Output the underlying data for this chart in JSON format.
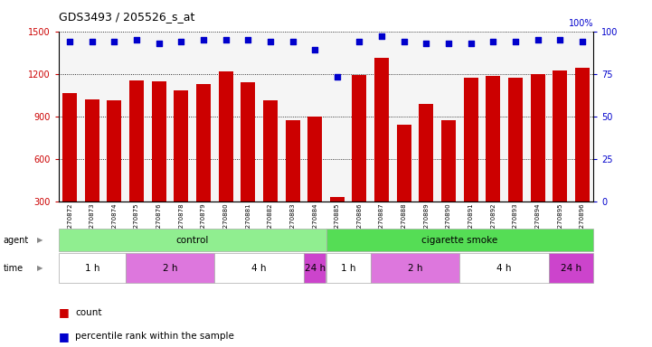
{
  "title": "GDS3493 / 205526_s_at",
  "samples": [
    "GSM270872",
    "GSM270873",
    "GSM270874",
    "GSM270875",
    "GSM270876",
    "GSM270878",
    "GSM270879",
    "GSM270880",
    "GSM270881",
    "GSM270882",
    "GSM270883",
    "GSM270884",
    "GSM270885",
    "GSM270886",
    "GSM270887",
    "GSM270888",
    "GSM270889",
    "GSM270890",
    "GSM270891",
    "GSM270892",
    "GSM270893",
    "GSM270894",
    "GSM270895",
    "GSM270896"
  ],
  "counts": [
    1065,
    1020,
    1015,
    1155,
    1145,
    1080,
    1130,
    1215,
    1140,
    1010,
    875,
    900,
    330,
    1190,
    1310,
    840,
    985,
    870,
    1175,
    1185,
    1175,
    1200,
    1225,
    1240
  ],
  "percentiles": [
    94,
    94,
    94,
    95,
    93,
    94,
    95,
    95,
    95,
    94,
    94,
    89,
    73,
    94,
    97,
    94,
    93,
    93,
    93,
    94,
    94,
    95,
    95,
    94
  ],
  "bar_color": "#cc0000",
  "dot_color": "#0000cc",
  "ylim_left": [
    300,
    1500
  ],
  "ylim_right": [
    0,
    100
  ],
  "yticks_left": [
    300,
    600,
    900,
    1200,
    1500
  ],
  "yticks_right": [
    0,
    25,
    50,
    75,
    100
  ],
  "agent_groups": [
    {
      "label": "control",
      "start": 0,
      "end": 12,
      "color": "#90EE90"
    },
    {
      "label": "cigarette smoke",
      "start": 12,
      "end": 24,
      "color": "#55dd55"
    }
  ],
  "time_groups": [
    {
      "label": "1 h",
      "start": 0,
      "end": 3,
      "color": "#ffffff"
    },
    {
      "label": "2 h",
      "start": 3,
      "end": 7,
      "color": "#dd77dd"
    },
    {
      "label": "4 h",
      "start": 7,
      "end": 11,
      "color": "#ffffff"
    },
    {
      "label": "24 h",
      "start": 11,
      "end": 12,
      "color": "#cc44cc"
    },
    {
      "label": "1 h",
      "start": 12,
      "end": 14,
      "color": "#ffffff"
    },
    {
      "label": "2 h",
      "start": 14,
      "end": 18,
      "color": "#dd77dd"
    },
    {
      "label": "4 h",
      "start": 18,
      "end": 22,
      "color": "#ffffff"
    },
    {
      "label": "24 h",
      "start": 22,
      "end": 24,
      "color": "#cc44cc"
    }
  ],
  "background_color": "#ffffff",
  "bar_color_hex": "#cc0000",
  "dot_color_hex": "#0000cc",
  "ylabel_left_color": "#cc0000",
  "ylabel_right_color": "#0000cc",
  "plot_bg": "#f5f5f5"
}
